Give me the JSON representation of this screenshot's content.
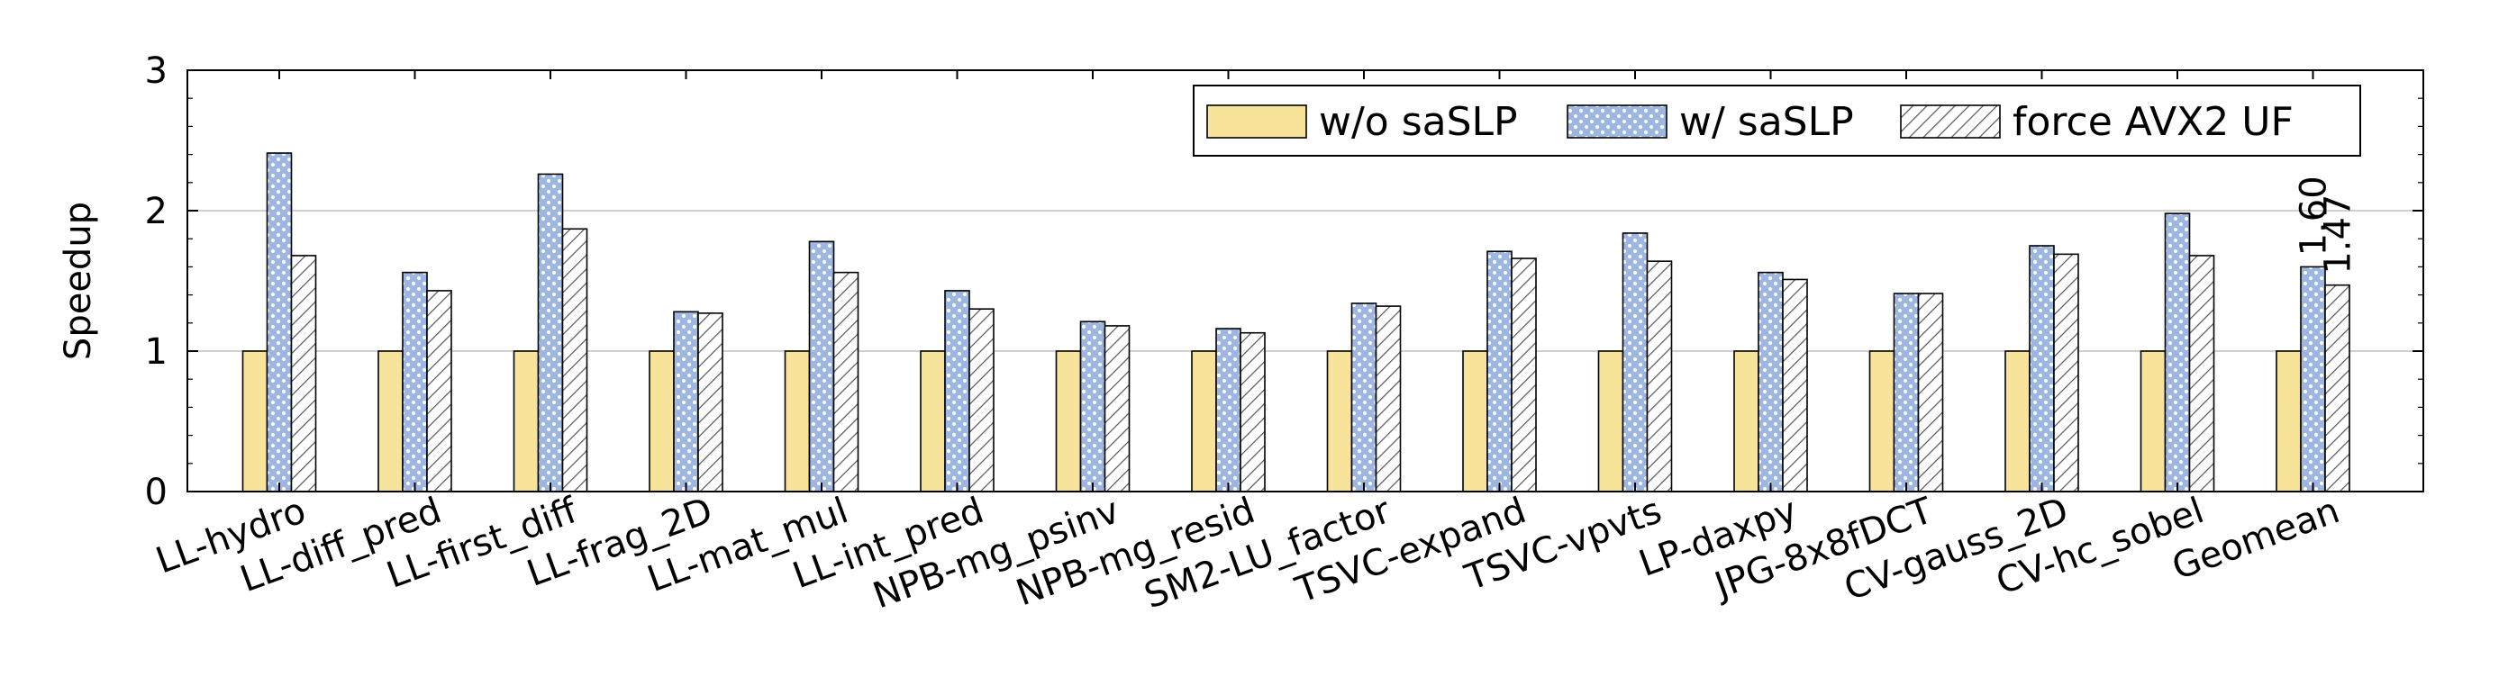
{
  "chart_data": {
    "type": "bar",
    "ylabel": "Speedup",
    "ylim": [
      0,
      3
    ],
    "yticks": [
      "0",
      "1",
      "2",
      "3"
    ],
    "grid": true,
    "legend_position": "top-right",
    "categories": [
      "LL-hydro",
      "LL-diff_pred",
      "LL-first_diff",
      "LL-frag_2D",
      "LL-mat_mul",
      "LL-int_pred",
      "NPB-mg_psinv",
      "NPB-mg_resid",
      "SM2-LU_factor",
      "TSVC-expand",
      "TSVC-vpvts",
      "LP-daxpy",
      "JPG-8x8fDCT",
      "CV-gauss_2D",
      "CV-hc_sobel",
      "Geomean"
    ],
    "series": [
      {
        "name": "w/o saSLP",
        "pattern": "solid",
        "color": "#F8E39A",
        "values": [
          1,
          1,
          1,
          1,
          1,
          1,
          1,
          1,
          1,
          1,
          1,
          1,
          1,
          1,
          1,
          1
        ]
      },
      {
        "name": "w/ saSLP",
        "pattern": "dots",
        "color": "#9DB6E2",
        "values": [
          2.41,
          1.56,
          2.26,
          1.28,
          1.78,
          1.43,
          1.21,
          1.16,
          1.34,
          1.71,
          1.84,
          1.56,
          1.41,
          1.75,
          1.98,
          1.6
        ]
      },
      {
        "name": "force AVX2 UF",
        "pattern": "hatch",
        "color": "#FFFFFF",
        "values": [
          1.68,
          1.43,
          1.87,
          1.27,
          1.56,
          1.3,
          1.18,
          1.13,
          1.32,
          1.66,
          1.64,
          1.51,
          1.41,
          1.69,
          1.68,
          1.47
        ]
      }
    ],
    "annotations": [
      {
        "text": "1.60",
        "category": "Geomean",
        "series": "w/ saSLP"
      },
      {
        "text": "1.47",
        "category": "Geomean",
        "series": "force AVX2 UF"
      }
    ]
  }
}
